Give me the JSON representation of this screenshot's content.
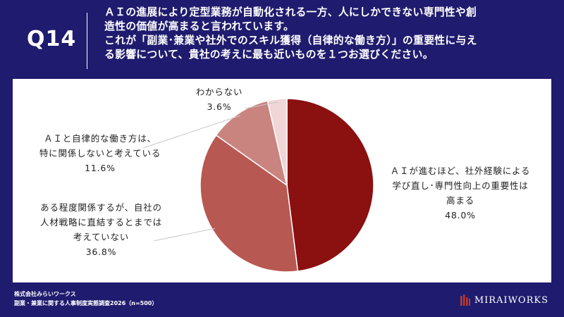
{
  "header": {
    "question_number": "Q14",
    "question_lines": [
      "ＡＩの進展により定型業務が自動化される一方、人にしかできない専門性や創",
      "造性の価値が高まると言われています。",
      "これが「副業･兼業や社外でのスキル獲得（自律的な働き方）」の重要性に与え",
      "る影響について、貴社の考えに最も近いものを１つお選びください。"
    ]
  },
  "chart_data": {
    "type": "pie",
    "title": "",
    "start_angle_deg": 0,
    "direction": "clockwise",
    "slices": [
      {
        "label": "ＡＩが進むほど、社外経験による学び直し･専門性向上の重要性は高まる",
        "label_lines": [
          "ＡＩが進むほど、社外経験による",
          "学び直し･専門性向上の重要性は",
          "高まる"
        ],
        "value": 48.0,
        "value_label": "48.0%",
        "color": "#8b1010"
      },
      {
        "label": "ある程度関係するが、自社の人材戦略に直結するとまでは考えていない",
        "label_lines": [
          "ある程度関係するが、自社の",
          "人材戦略に直結するとまでは",
          "考えていない"
        ],
        "value": 36.8,
        "value_label": "36.8%",
        "color": "#b85852"
      },
      {
        "label": "ＡＩと自律的な働き方は、特に関係しないと考えている",
        "label_lines": [
          "ＡＩと自律的な働き方は、",
          "特に関係しないと考えている"
        ],
        "value": 11.6,
        "value_label": "11.6%",
        "color": "#c98480"
      },
      {
        "label": "わからない",
        "label_lines": [
          "わからない"
        ],
        "value": 3.6,
        "value_label": "3.6%",
        "color": "#f0d6d6"
      }
    ]
  },
  "footer": {
    "company": "株式会社みらいワークス",
    "survey": "副業・兼業に関する人事制度実態調査2026（n=500）",
    "logo_text": "MIRAIWORKS"
  }
}
